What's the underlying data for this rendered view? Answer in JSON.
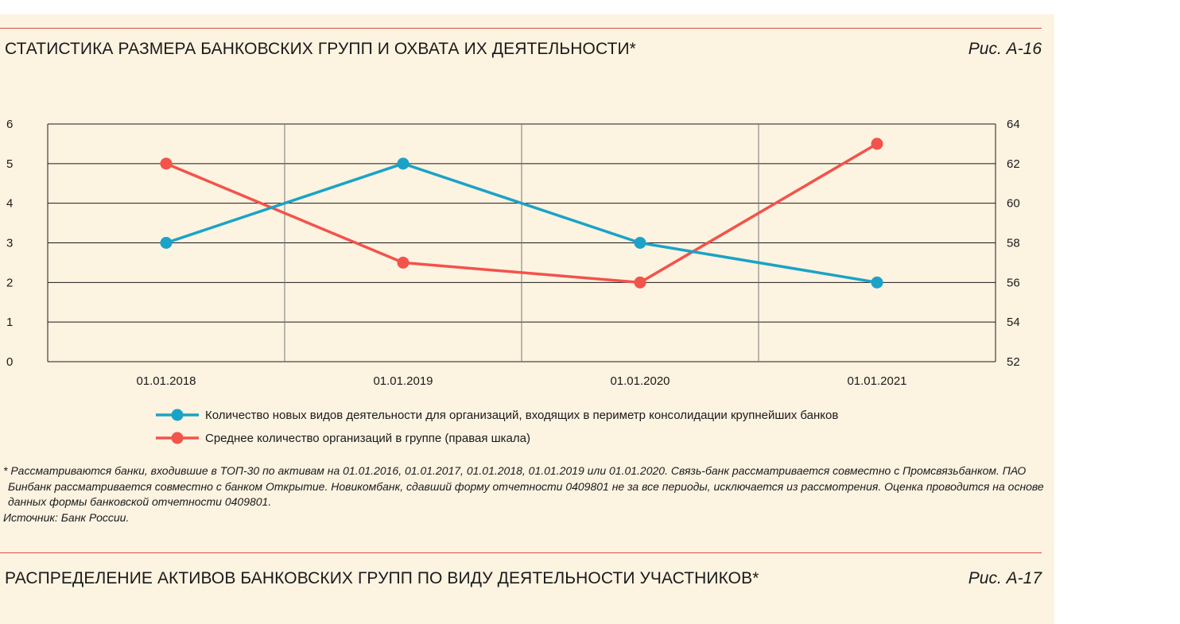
{
  "section1": {
    "title": "СТАТИСТИКА РАЗМЕРА БАНКОВСКИХ ГРУПП И ОХВАТА ИХ ДЕЯТЕЛЬНОСТИ*",
    "figure_label": "Рис. А-16"
  },
  "section2": {
    "title": "РАСПРЕДЕЛЕНИЕ АКТИВОВ БАНКОВСКИХ ГРУПП ПО ВИДУ ДЕЯТЕЛЬНОСТИ УЧАСТНИКОВ*",
    "figure_label": "Рис. А-17"
  },
  "colors": {
    "series1": "#1aa3c6",
    "series2": "#f2534b",
    "rule": "#d84a40",
    "panel": "#fdf3e1"
  },
  "chart_data": {
    "type": "line",
    "categories": [
      "01.01.2018",
      "01.01.2019",
      "01.01.2020",
      "01.01.2021"
    ],
    "y_left": {
      "min": 0,
      "max": 6,
      "ticks": [
        "0",
        "1",
        "2",
        "3",
        "4",
        "5",
        "6"
      ]
    },
    "y_right": {
      "min": 52,
      "max": 64,
      "ticks": [
        "52",
        "54",
        "56",
        "58",
        "60",
        "62",
        "64"
      ]
    },
    "grid": true,
    "legend_placement": "bottom",
    "series": [
      {
        "name": "Количество новых видов деятельности для организаций, входящих в периметр консолидации крупнейших банков",
        "axis": "left",
        "values": [
          3,
          5,
          3,
          2
        ]
      },
      {
        "name": "Среднее количество организаций в группе (правая шкала)",
        "axis": "right",
        "values": [
          62,
          57,
          56,
          63
        ]
      }
    ]
  },
  "notes": {
    "footnote": "* Рассматриваются банки, входившие в ТОП-30 по активам на 01.01.2016, 01.01.2017, 01.01.2018, 01.01.2019 или 01.01.2020.  Связь-банк рассматривается совместно с Промсвязьбанком. ПАО Бинбанк рассматривается совместно с банком Открытие. Новикомбанк, сдавший форму отчетности 0409801 не за все периоды, исключается из рассмотрения. Оценка проводится на основе данных формы банковской отчетности 0409801.",
    "source": "Источник: Банк России."
  }
}
